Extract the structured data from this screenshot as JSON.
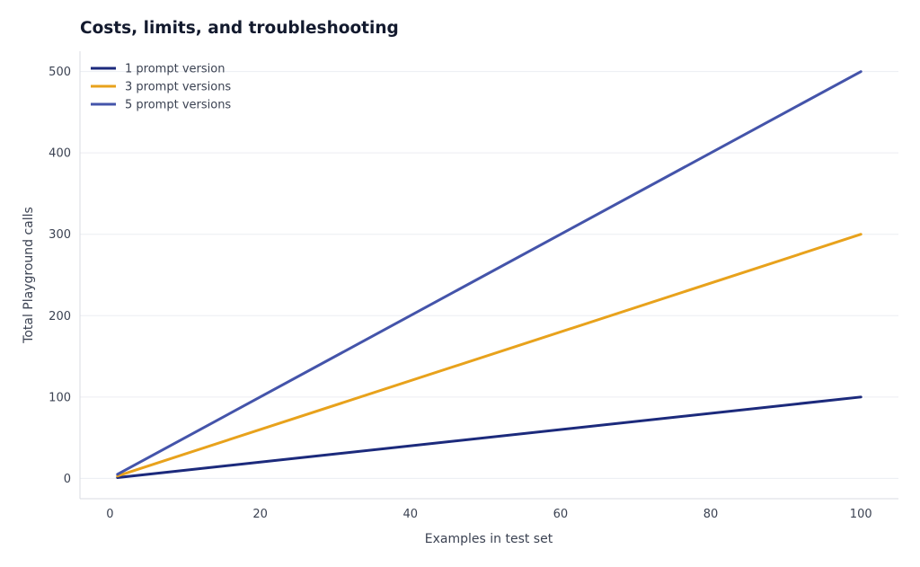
{
  "chart_data": {
    "type": "line",
    "title": "Costs, limits, and troubleshooting",
    "xlabel": "Examples in test set",
    "ylabel": "Total Playground calls",
    "xlim": [
      -4,
      105
    ],
    "ylim": [
      -25,
      525
    ],
    "x_ticks": [
      0,
      20,
      40,
      60,
      80,
      100
    ],
    "y_ticks": [
      0,
      100,
      200,
      300,
      400,
      500
    ],
    "grid": "horizontal",
    "legend_position": "top-left",
    "series": [
      {
        "name": "1 prompt version",
        "color": "#1c2a7c",
        "x": [
          1,
          100
        ],
        "y": [
          1,
          100
        ]
      },
      {
        "name": "3 prompt versions",
        "color": "#e8a21c",
        "x": [
          1,
          100
        ],
        "y": [
          3,
          300
        ]
      },
      {
        "name": "5 prompt versions",
        "color": "#4454aa",
        "x": [
          1,
          100
        ],
        "y": [
          5,
          500
        ]
      }
    ]
  }
}
